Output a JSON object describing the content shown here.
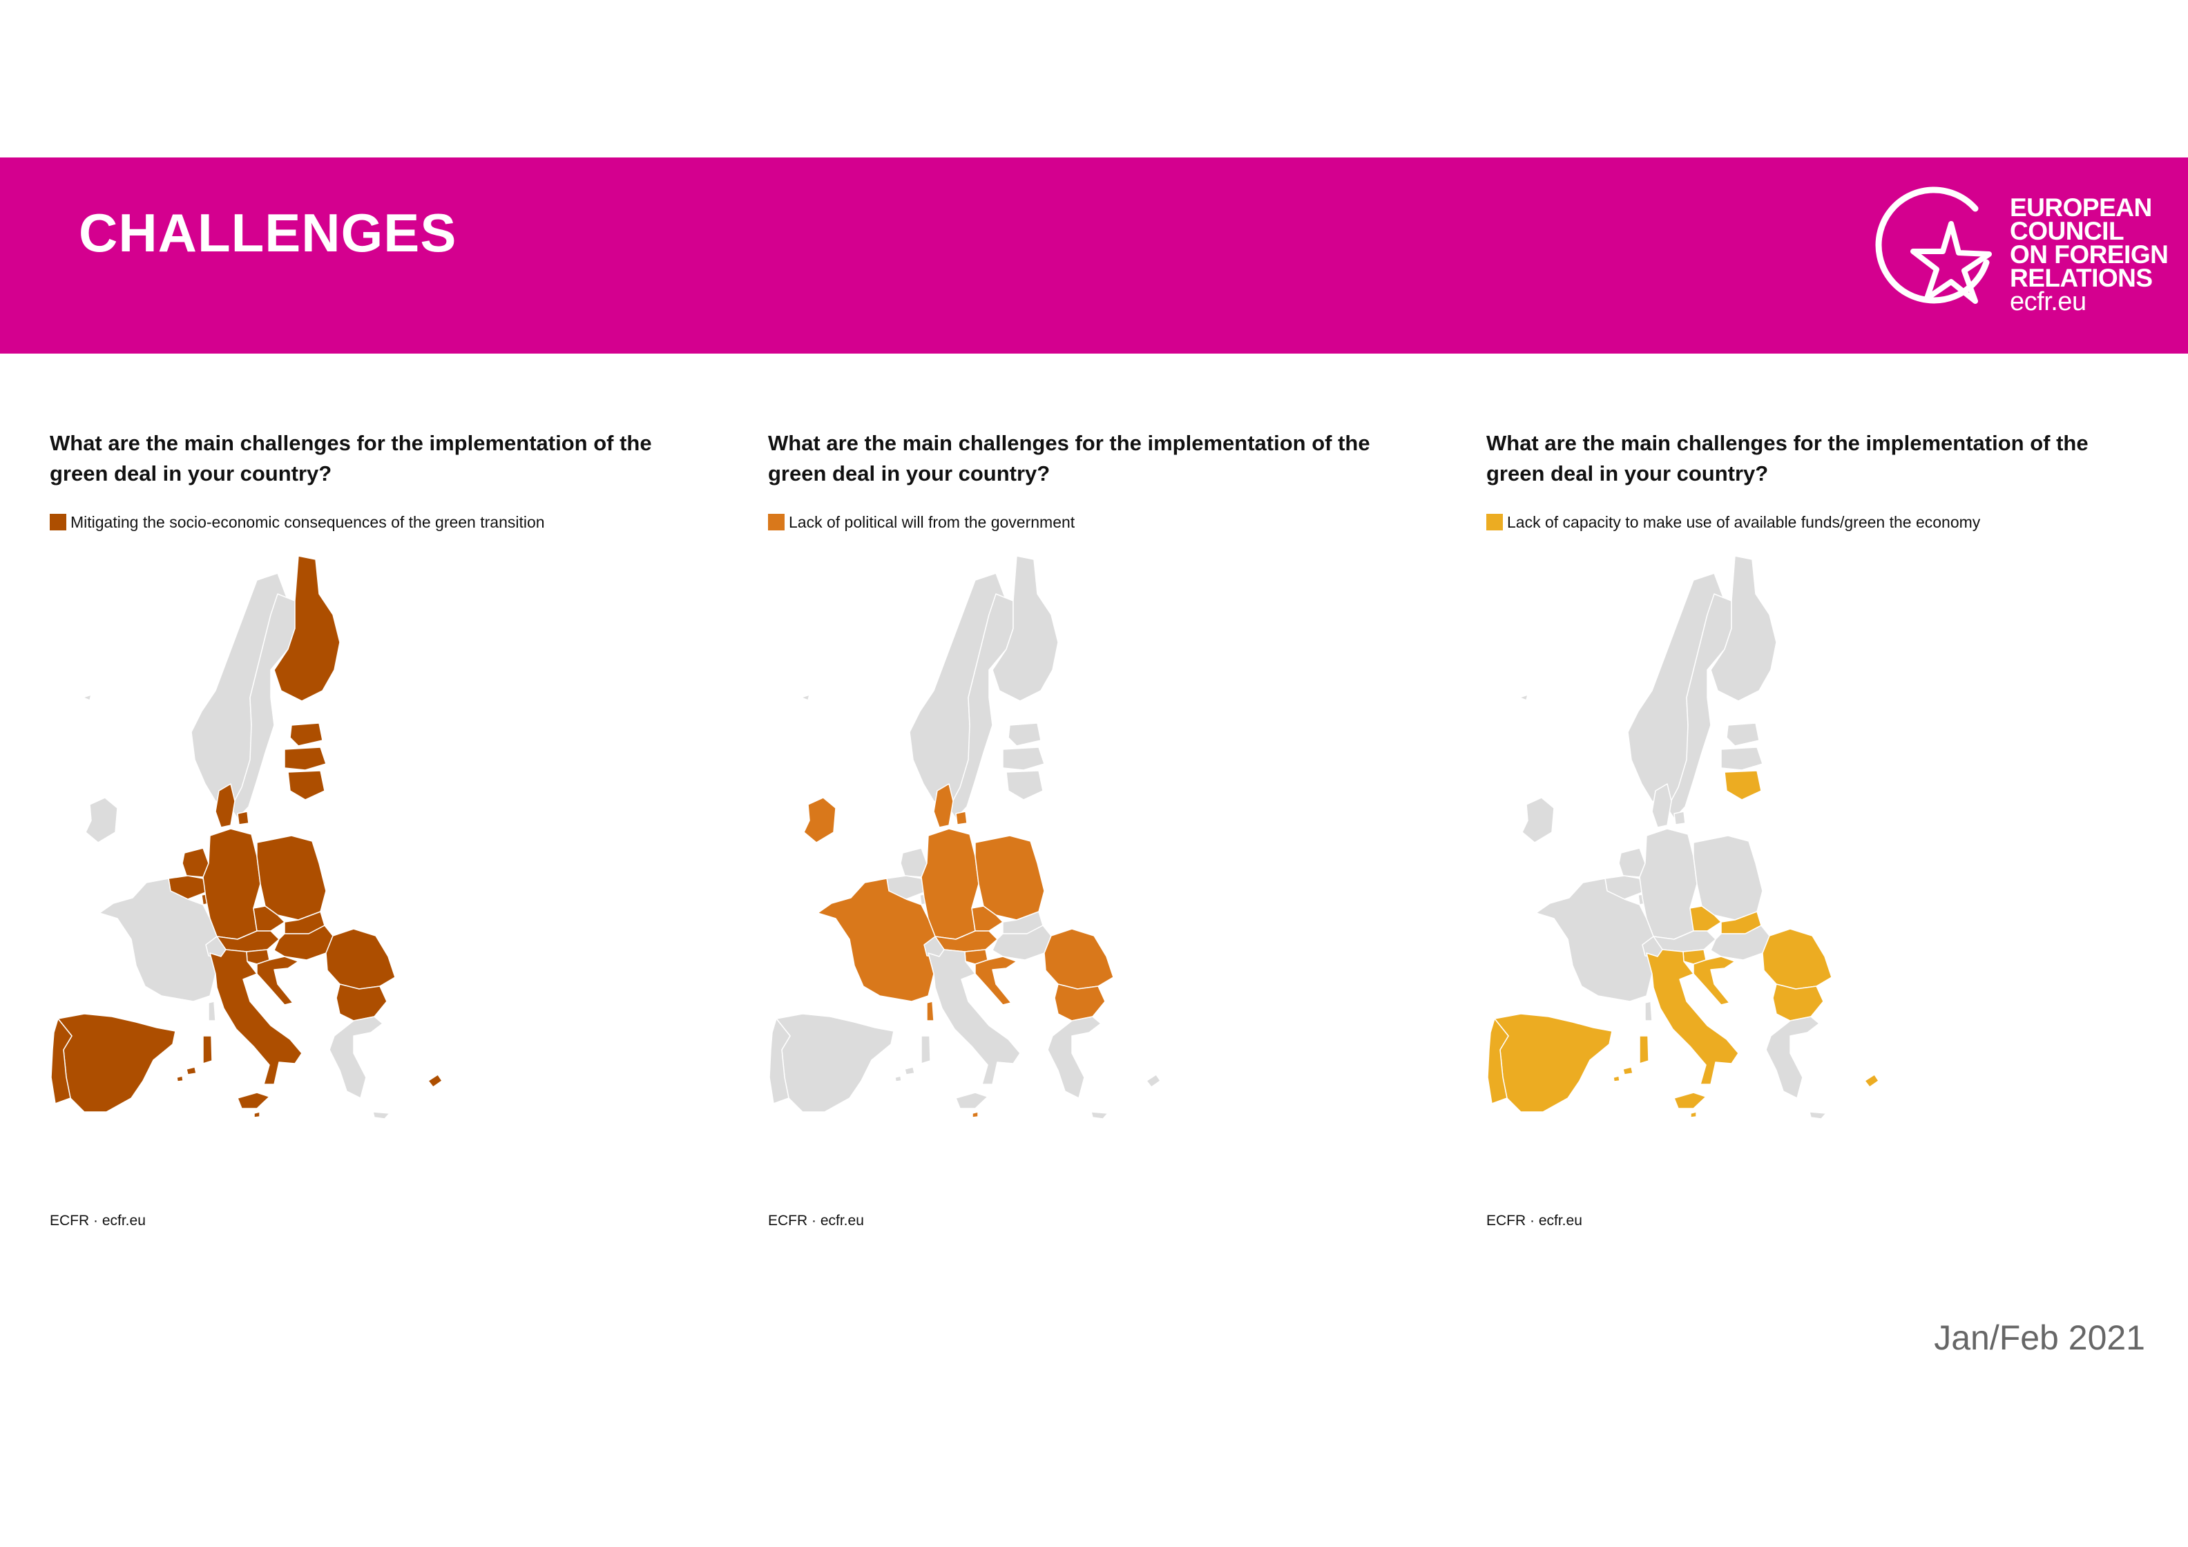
{
  "header": {
    "title": "CHALLENGES",
    "logo": {
      "lines": [
        "EUROPEAN",
        "COUNCIL",
        "ON FOREIGN",
        "RELATIONS"
      ],
      "url": "ecfr.eu",
      "icon": "star-circle-logo-icon"
    }
  },
  "colors": {
    "banner": "#d4008f",
    "unselected_country": "#dcdcdc"
  },
  "panels": [
    {
      "title": "What are the main challenges for the implementation of the green deal in your country?",
      "legend": "Mitigating the socio-economic consequences of the green transition",
      "color": "#ad4e00",
      "source": "ECFR · ecfr.eu",
      "highlighted": [
        "FI",
        "EE",
        "LV",
        "LT",
        "DK",
        "DE",
        "PL",
        "CZ",
        "SK",
        "HU",
        "RO",
        "BG",
        "AT",
        "SI",
        "HR",
        "IT",
        "NL",
        "BE",
        "LU",
        "ES",
        "PT",
        "MT",
        "CY"
      ]
    },
    {
      "title": "What are the main challenges for the implementation of the green deal in your country?",
      "legend": "Lack of political will from the government",
      "color": "#d9781b",
      "source": "ECFR · ecfr.eu",
      "highlighted": [
        "IE",
        "FR",
        "DK",
        "DE",
        "PL",
        "CZ",
        "AT",
        "SI",
        "HR",
        "RO",
        "BG",
        "MT"
      ]
    },
    {
      "title": "What are the main challenges for the implementation of the green deal in your country?",
      "legend": "Lack of capacity to make use of available funds/green the economy",
      "color": "#ecac22",
      "source": "ECFR · ecfr.eu",
      "highlighted": [
        "LT",
        "CZ",
        "SK",
        "RO",
        "BG",
        "SI",
        "HR",
        "IT",
        "MT",
        "ES",
        "PT",
        "CY"
      ]
    }
  ],
  "footer": {
    "date": "Jan/Feb 2021"
  }
}
